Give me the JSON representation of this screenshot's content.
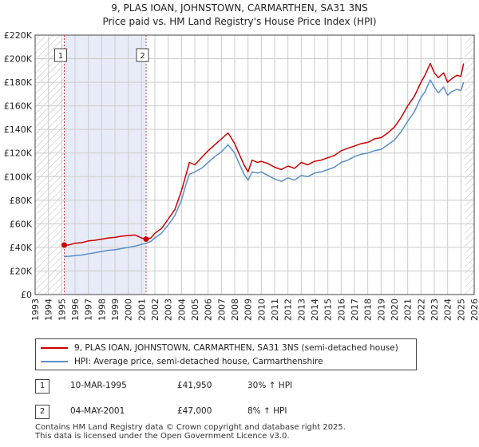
{
  "title": {
    "line1": "9, PLAS IOAN, JOHNSTOWN, CARMARTHEN, SA31 3NS",
    "line2": "Price paid vs. HM Land Registry's House Price Index (HPI)"
  },
  "colors": {
    "property": "#cc0000",
    "hpi": "#5a8fc8",
    "shade": "#e8ecf8",
    "grid": "#cccccc"
  },
  "chart_data": {
    "type": "line",
    "xlabel": "",
    "ylabel": "",
    "xlim": [
      1993,
      2026
    ],
    "ylim": [
      0,
      220000
    ],
    "x_ticks": [
      1993,
      1994,
      1995,
      1996,
      1997,
      1998,
      1999,
      2000,
      2001,
      2002,
      2003,
      2004,
      2005,
      2006,
      2007,
      2008,
      2009,
      2010,
      2011,
      2012,
      2013,
      2014,
      2015,
      2016,
      2017,
      2018,
      2019,
      2020,
      2021,
      2022,
      2023,
      2024,
      2025,
      2026
    ],
    "y_ticks": [
      0,
      20000,
      40000,
      60000,
      80000,
      100000,
      120000,
      140000,
      160000,
      180000,
      200000,
      220000
    ],
    "y_tick_labels": [
      "£0",
      "£20K",
      "£40K",
      "£60K",
      "£80K",
      "£100K",
      "£120K",
      "£140K",
      "£160K",
      "£180K",
      "£200K",
      "£220K"
    ],
    "shaded_region": [
      1995.19,
      2001.34
    ],
    "future_region_start": 2025.3,
    "series": [
      {
        "name": "9, PLAS IOAN, JOHNSTOWN, CARMARTHEN, SA31 3NS (semi-detached house)",
        "x": [
          1995.19,
          1995.5,
          1996,
          1996.5,
          1997,
          1997.5,
          1998,
          1998.5,
          1999,
          1999.5,
          2000,
          2000.5,
          2001,
          2001.34,
          2001.7,
          2002,
          2002.5,
          2003,
          2003.5,
          2004,
          2004.3,
          2004.6,
          2005,
          2005.5,
          2006,
          2006.5,
          2007,
          2007.5,
          2008,
          2008.3,
          2008.7,
          2009,
          2009.3,
          2009.7,
          2010,
          2010.5,
          2011,
          2011.5,
          2012,
          2012.5,
          2013,
          2013.5,
          2014,
          2014.5,
          2015,
          2015.5,
          2016,
          2016.5,
          2017,
          2017.5,
          2018,
          2018.5,
          2019,
          2019.5,
          2020,
          2020.5,
          2021,
          2021.5,
          2022,
          2022.3,
          2022.7,
          2023,
          2023.3,
          2023.7,
          2024,
          2024.3,
          2024.7,
          2025,
          2025.2
        ],
        "values": [
          41950,
          42000,
          43500,
          44000,
          45500,
          46000,
          47000,
          48000,
          48500,
          49500,
          50000,
          50500,
          48000,
          47000,
          48000,
          52000,
          56000,
          64000,
          72000,
          88000,
          100000,
          112000,
          110000,
          116000,
          122000,
          127000,
          132000,
          137000,
          128000,
          120000,
          110000,
          104000,
          114000,
          112000,
          113000,
          111000,
          108000,
          106000,
          109000,
          107000,
          112000,
          110000,
          113000,
          114000,
          116000,
          118000,
          122000,
          124000,
          126000,
          128000,
          129000,
          132000,
          133000,
          137000,
          142000,
          150000,
          160000,
          168000,
          180000,
          186000,
          196000,
          188000,
          184000,
          188000,
          180000,
          183000,
          186000,
          185000,
          196000
        ]
      },
      {
        "name": "HPI: Average price, semi-detached house, Carmarthenshire",
        "x": [
          1995.19,
          1995.5,
          1996,
          1996.5,
          1997,
          1997.5,
          1998,
          1998.5,
          1999,
          1999.5,
          2000,
          2000.5,
          2001,
          2001.34,
          2001.7,
          2002,
          2002.5,
          2003,
          2003.5,
          2004,
          2004.3,
          2004.6,
          2005,
          2005.5,
          2006,
          2006.5,
          2007,
          2007.5,
          2008,
          2008.3,
          2008.7,
          2009,
          2009.3,
          2009.7,
          2010,
          2010.5,
          2011,
          2011.5,
          2012,
          2012.5,
          2013,
          2013.5,
          2014,
          2014.5,
          2015,
          2015.5,
          2016,
          2016.5,
          2017,
          2017.5,
          2018,
          2018.5,
          2019,
          2019.5,
          2020,
          2020.5,
          2021,
          2021.5,
          2022,
          2022.3,
          2022.7,
          2023,
          2023.3,
          2023.7,
          2024,
          2024.3,
          2024.7,
          2025,
          2025.2
        ],
        "values": [
          32200,
          32400,
          33000,
          33500,
          34500,
          35500,
          36500,
          37500,
          38000,
          39000,
          40000,
          41000,
          42500,
          43500,
          45000,
          48000,
          52000,
          59000,
          67000,
          80000,
          92000,
          102000,
          104000,
          107000,
          112000,
          117000,
          121000,
          127000,
          120000,
          112000,
          102000,
          97000,
          104000,
          103000,
          104000,
          101000,
          98000,
          96000,
          99000,
          97000,
          101000,
          100000,
          103000,
          104000,
          106000,
          108000,
          112000,
          114000,
          117000,
          119000,
          120000,
          122000,
          123000,
          127000,
          131000,
          138000,
          147000,
          155000,
          167000,
          172000,
          182000,
          176000,
          171000,
          176000,
          169000,
          172000,
          174000,
          173000,
          180000
        ]
      }
    ],
    "annotations": [
      {
        "label": "1",
        "x": 1995.19,
        "value": 41950
      },
      {
        "label": "2",
        "x": 2001.34,
        "value": 47000
      }
    ]
  },
  "legend": {
    "property": "9, PLAS IOAN, JOHNSTOWN, CARMARTHEN, SA31 3NS (semi-detached house)",
    "hpi": "HPI: Average price, semi-detached house, Carmarthenshire"
  },
  "sales": [
    {
      "num": "1",
      "date": "10-MAR-1995",
      "price": "£41,950",
      "hpi": "30% ↑ HPI"
    },
    {
      "num": "2",
      "date": "04-MAY-2001",
      "price": "£47,000",
      "hpi": "8% ↑ HPI"
    }
  ],
  "footer": {
    "line1": "Contains HM Land Registry data © Crown copyright and database right 2025.",
    "line2": "This data is licensed under the Open Government Licence v3.0."
  }
}
